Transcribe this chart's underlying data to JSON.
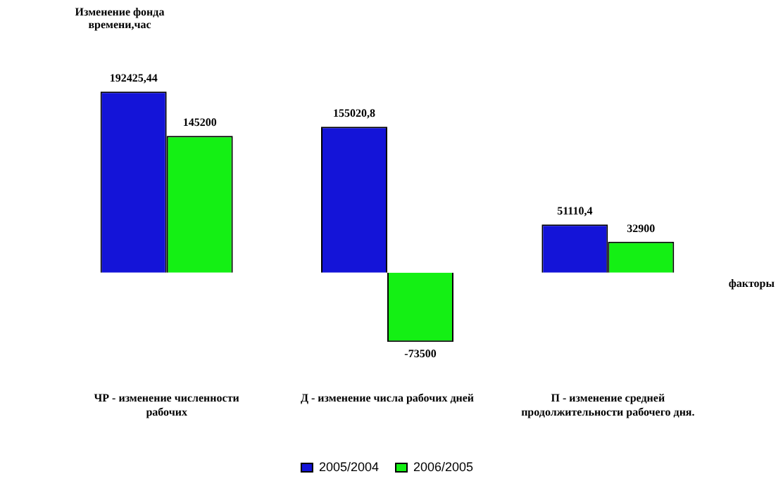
{
  "chart_data": {
    "type": "bar",
    "annotations": [
      "Изменение фонда времени,час"
    ],
    "xlabel": "факторы",
    "categories": [
      "ЧР - изменение численности рабочих",
      "Д - изменение числа рабочих дней",
      "П - изменение средней продолжительности рабочего дня."
    ],
    "series": [
      {
        "name": "2005/2004",
        "color": "#1414d8",
        "values": [
          192425.44,
          155020.8,
          51110.4
        ],
        "value_labels": [
          "192425,44",
          "155020,8",
          "51110,4"
        ]
      },
      {
        "name": "2006/2005",
        "color": "#14f014",
        "values": [
          145200,
          -73500,
          32900
        ],
        "value_labels": [
          "145200",
          "-73500",
          "32900"
        ]
      }
    ],
    "legend": "bottom",
    "grid": false
  }
}
